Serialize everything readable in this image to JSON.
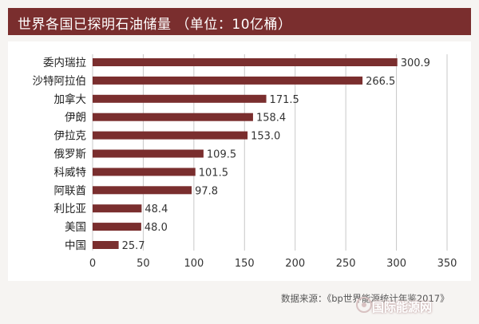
{
  "title": "世界各国已探明石油储量 （单位：10亿桶）",
  "source": "数据来源：《bp世界能源统计年鉴2017》",
  "watermark": "国际能源网",
  "colors": {
    "bar": "#7a2e2e",
    "title_bg": "#7a2e2e",
    "grid": "#c8c8c8",
    "panel": "#ffffff",
    "background": "#f6f4f2"
  },
  "chart_data": {
    "type": "bar",
    "orientation": "horizontal",
    "title": "世界各国已探明石油储量 （单位：10亿桶）",
    "categories": [
      "委内瑞拉",
      "沙特阿拉伯",
      "加拿大",
      "伊朗",
      "伊拉克",
      "俄罗斯",
      "科威特",
      "阿联酋",
      "利比亚",
      "美国",
      "中国"
    ],
    "values": [
      300.9,
      266.5,
      171.5,
      158.4,
      153.0,
      109.5,
      101.5,
      97.8,
      48.4,
      48.0,
      25.7
    ],
    "value_labels": [
      "300.9",
      "266.5",
      "171.5",
      "158.4",
      "153.0",
      "109.5",
      "101.5",
      "97.8",
      "48.4",
      "48.0",
      "25.7"
    ],
    "xlim": [
      0,
      350
    ],
    "xticks": [
      "0",
      "50",
      "100",
      "150",
      "200",
      "250",
      "300",
      "350"
    ],
    "grid": true,
    "legend": "none"
  }
}
